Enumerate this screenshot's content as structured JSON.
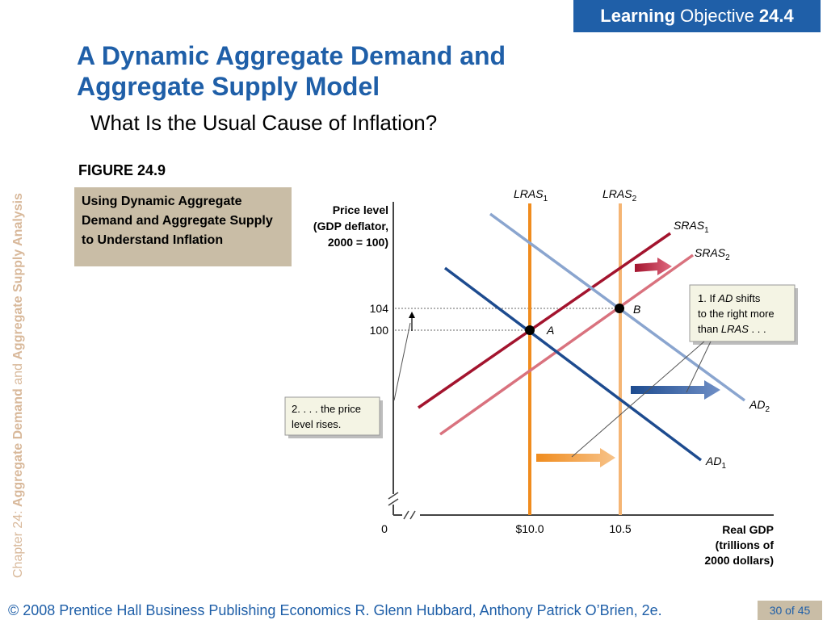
{
  "banner": {
    "bold": "Learning",
    "normal": "Objective",
    "number": "24.4"
  },
  "side_text": {
    "prefix": "Chapter 24:",
    "part1": "Aggregate Demand",
    "and": "and",
    "part2": "Aggregate Supply Analysis"
  },
  "title": "A Dynamic Aggregate Demand and Aggregate Supply Model",
  "subtitle": "What Is the Usual Cause of Inflation?",
  "figure_label": "FIGURE 24.9",
  "figure_caption": "Using Dynamic Aggregate Demand and Aggregate Supply to Understand Inflation",
  "footer": "© 2008 Prentice Hall Business Publishing   Economics  R. Glenn Hubbard, Anthony Patrick O’Brien, 2e.",
  "page_number": "30 of 45",
  "chart_data": {
    "type": "line",
    "ylabel": [
      "Price level",
      "(GDP deflator,",
      "2000 = 100)"
    ],
    "xlabel": [
      "Real GDP",
      "(trillions of",
      "2000 dollars)"
    ],
    "x_ticks": [
      "$10.0",
      "10.5"
    ],
    "y_ticks": [
      "104",
      "100"
    ],
    "origin_label": "0",
    "series": [
      {
        "name": "LRAS1",
        "base": "LRAS",
        "sub": "1",
        "type": "vertical",
        "x": 10.0,
        "color": "#f08c1e"
      },
      {
        "name": "LRAS2",
        "base": "LRAS",
        "sub": "2",
        "type": "vertical",
        "x": 10.5,
        "color": "#f5b574"
      },
      {
        "name": "SRAS1",
        "base": "SRAS",
        "sub": "1",
        "color": "#a3142e"
      },
      {
        "name": "SRAS2",
        "base": "SRAS",
        "sub": "2",
        "color": "#d9727e"
      },
      {
        "name": "AD1",
        "base": "AD",
        "sub": "1",
        "color": "#1d4b8f"
      },
      {
        "name": "AD2",
        "base": "AD",
        "sub": "2",
        "color": "#8aa5cf"
      }
    ],
    "points": [
      {
        "label": "A",
        "x": 10.0,
        "y": 100
      },
      {
        "label": "B",
        "x": 10.5,
        "y": 104
      }
    ],
    "annotations": {
      "note1": [
        "1.  If ",
        "AD",
        " shifts",
        "to the right more",
        "than ",
        "LRAS",
        " . . ."
      ],
      "note2": [
        "2. . . . the price",
        "level rises."
      ]
    }
  }
}
